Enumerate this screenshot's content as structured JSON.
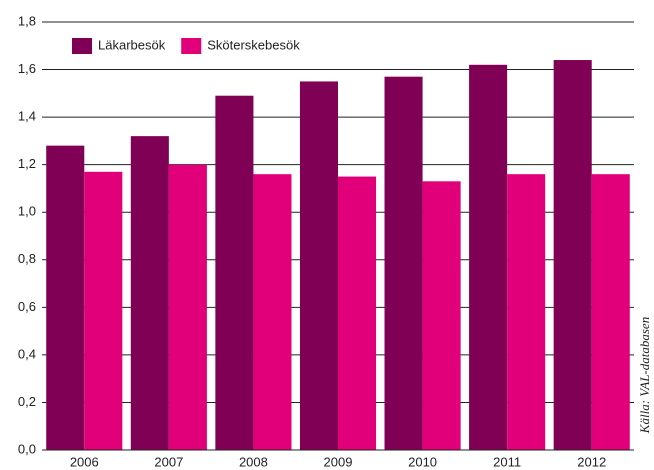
{
  "chart_data": {
    "type": "bar",
    "categories": [
      "2006",
      "2007",
      "2008",
      "2009",
      "2010",
      "2011",
      "2012"
    ],
    "series": [
      {
        "name": "Läkarbesök",
        "color": "#800055",
        "values": [
          1.28,
          1.32,
          1.49,
          1.55,
          1.57,
          1.62,
          1.64
        ]
      },
      {
        "name": "Sköterskebesök",
        "color": "#e1007a",
        "values": [
          1.17,
          1.2,
          1.16,
          1.15,
          1.13,
          1.16,
          1.16
        ]
      }
    ],
    "ylim": [
      0,
      1.8
    ],
    "yticks": [
      {
        "value": 0,
        "label": "0,0"
      },
      {
        "value": 0.2,
        "label": "0,2"
      },
      {
        "value": 0.4,
        "label": "0,4"
      },
      {
        "value": 0.6,
        "label": "0,6"
      },
      {
        "value": 0.8,
        "label": "0,8"
      },
      {
        "value": 1.0,
        "label": "1,0"
      },
      {
        "value": 1.2,
        "label": "1,2"
      },
      {
        "value": 1.4,
        "label": "1,4"
      },
      {
        "value": 1.6,
        "label": "1,6"
      },
      {
        "value": 1.8,
        "label": "1,8"
      }
    ],
    "grid": true,
    "legend": "top-left",
    "annotation": "Källa: VAL-databasen"
  }
}
